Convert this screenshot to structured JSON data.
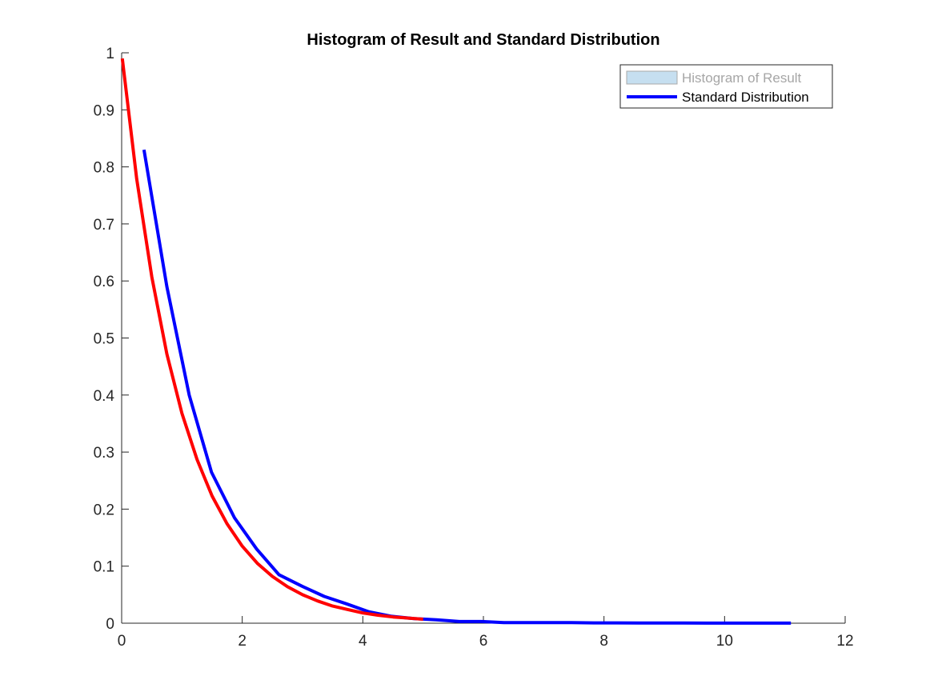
{
  "chart_data": {
    "type": "line",
    "title": "Histogram of Result and Standard Distribution",
    "xlabel": "",
    "ylabel": "",
    "xlim": [
      0,
      12
    ],
    "ylim": [
      0,
      1
    ],
    "xticks": [
      "0",
      "2",
      "4",
      "6",
      "8",
      "10",
      "12"
    ],
    "yticks": [
      "0",
      "0.1",
      "0.2",
      "0.3",
      "0.4",
      "0.5",
      "0.6",
      "0.7",
      "0.8",
      "0.9",
      "1"
    ],
    "grid": false,
    "legend_position": "top-right",
    "legend": [
      {
        "label": "Histogram of Result",
        "kind": "patch",
        "color": "#c6dff0",
        "muted": true
      },
      {
        "label": "Standard Distribution",
        "kind": "line",
        "color": "#0000ff"
      }
    ],
    "series": [
      {
        "color": "#0000ff",
        "x": [
          0.37,
          0.75,
          1.12,
          1.49,
          1.87,
          2.24,
          2.61,
          2.99,
          3.36,
          3.73,
          4.1,
          4.48,
          4.85,
          5.22,
          5.6,
          5.97,
          6.34,
          6.72,
          7.09,
          7.46,
          7.83,
          8.21,
          8.58,
          8.95,
          9.33,
          9.7,
          10.07,
          10.44,
          10.82,
          11.1
        ],
        "y": [
          0.83,
          0.59,
          0.4,
          0.265,
          0.185,
          0.13,
          0.085,
          0.065,
          0.047,
          0.034,
          0.02,
          0.012,
          0.008,
          0.006,
          0.003,
          0.003,
          0.001,
          0.001,
          0.001,
          0.001,
          0.0005,
          0.0005,
          0.0003,
          0.0003,
          0.0003,
          0.0002,
          0.0002,
          0.0002,
          0.0001,
          0.0001
        ]
      },
      {
        "color": "#ff0000",
        "x": [
          0.01,
          0.25,
          0.5,
          0.75,
          1.0,
          1.25,
          1.5,
          1.75,
          2.0,
          2.25,
          2.5,
          2.75,
          3.0,
          3.25,
          3.5,
          3.75,
          4.0,
          4.25,
          4.5,
          4.75,
          5.0
        ],
        "y": [
          0.99,
          0.779,
          0.607,
          0.472,
          0.368,
          0.287,
          0.223,
          0.174,
          0.135,
          0.105,
          0.082,
          0.064,
          0.05,
          0.039,
          0.03,
          0.024,
          0.018,
          0.014,
          0.011,
          0.009,
          0.007
        ]
      }
    ]
  }
}
